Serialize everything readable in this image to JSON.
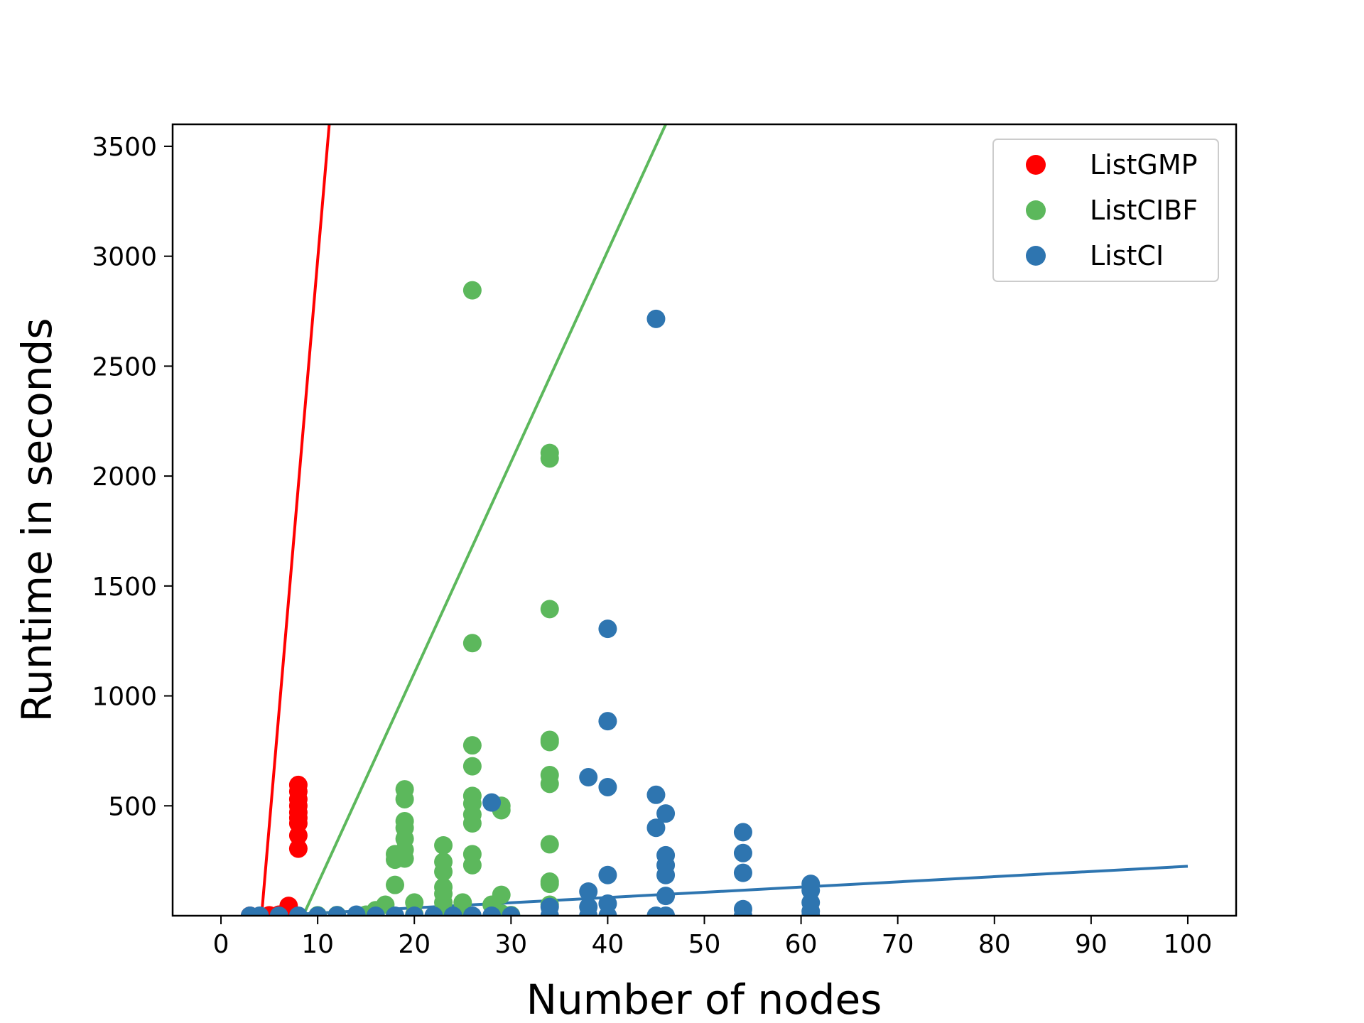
{
  "chart_data": {
    "type": "scatter",
    "title": "",
    "xlabel": "Number of nodes",
    "ylabel": "Runtime in seconds",
    "xlim": [
      -5,
      105
    ],
    "ylim": [
      0,
      3600
    ],
    "xticks": [
      0,
      10,
      20,
      30,
      40,
      50,
      60,
      70,
      80,
      90,
      100
    ],
    "yticks": [
      500,
      1000,
      1500,
      2000,
      2500,
      3000,
      3500
    ],
    "grid": false,
    "legend_position": "top-right",
    "series": [
      {
        "name": "ListGMP",
        "color": "#ff0000",
        "points": [
          [
            3,
            0
          ],
          [
            5,
            2
          ],
          [
            6,
            5
          ],
          [
            7,
            10
          ],
          [
            7,
            45
          ],
          [
            8,
            305
          ],
          [
            8,
            365
          ],
          [
            8,
            420
          ],
          [
            8,
            445
          ],
          [
            8,
            470
          ],
          [
            8,
            500
          ],
          [
            8,
            530
          ],
          [
            8,
            565
          ],
          [
            8,
            595
          ]
        ],
        "fit_line": [
          [
            4.2,
            0
          ],
          [
            11.2,
            3600
          ]
        ]
      },
      {
        "name": "ListCIBF",
        "color": "#5cb85c",
        "points": [
          [
            10,
            2
          ],
          [
            12,
            3
          ],
          [
            15,
            5
          ],
          [
            16,
            25
          ],
          [
            17,
            50
          ],
          [
            18,
            140
          ],
          [
            18,
            255
          ],
          [
            18,
            280
          ],
          [
            19,
            260
          ],
          [
            19,
            300
          ],
          [
            19,
            350
          ],
          [
            19,
            400
          ],
          [
            19,
            430
          ],
          [
            19,
            530
          ],
          [
            19,
            575
          ],
          [
            20,
            60
          ],
          [
            20,
            5
          ],
          [
            23,
            20
          ],
          [
            23,
            60
          ],
          [
            23,
            100
          ],
          [
            23,
            130
          ],
          [
            23,
            200
          ],
          [
            23,
            245
          ],
          [
            23,
            320
          ],
          [
            25,
            60
          ],
          [
            25,
            10
          ],
          [
            26,
            230
          ],
          [
            26,
            280
          ],
          [
            26,
            420
          ],
          [
            26,
            460
          ],
          [
            26,
            510
          ],
          [
            26,
            545
          ],
          [
            26,
            680
          ],
          [
            26,
            775
          ],
          [
            26,
            1240
          ],
          [
            26,
            2845
          ],
          [
            28,
            50
          ],
          [
            29,
            95
          ],
          [
            29,
            480
          ],
          [
            29,
            500
          ],
          [
            29,
            10
          ],
          [
            30,
            3
          ],
          [
            34,
            50
          ],
          [
            34,
            145
          ],
          [
            34,
            155
          ],
          [
            34,
            325
          ],
          [
            34,
            600
          ],
          [
            34,
            640
          ],
          [
            34,
            790
          ],
          [
            34,
            800
          ],
          [
            34,
            1395
          ],
          [
            34,
            2080
          ],
          [
            34,
            2105
          ]
        ],
        "fit_line": [
          [
            8.5,
            0
          ],
          [
            46,
            3600
          ]
        ]
      },
      {
        "name": "ListCI",
        "color": "#2e75b0",
        "points": [
          [
            3,
            0
          ],
          [
            4,
            0
          ],
          [
            6,
            0
          ],
          [
            8,
            0
          ],
          [
            10,
            0
          ],
          [
            12,
            2
          ],
          [
            14,
            5
          ],
          [
            16,
            0
          ],
          [
            18,
            0
          ],
          [
            20,
            0
          ],
          [
            22,
            0
          ],
          [
            24,
            0
          ],
          [
            26,
            0
          ],
          [
            28,
            515
          ],
          [
            28,
            0
          ],
          [
            30,
            0
          ],
          [
            34,
            0
          ],
          [
            34,
            40
          ],
          [
            38,
            0
          ],
          [
            38,
            40
          ],
          [
            38,
            110
          ],
          [
            38,
            630
          ],
          [
            40,
            0
          ],
          [
            40,
            55
          ],
          [
            40,
            185
          ],
          [
            40,
            585
          ],
          [
            40,
            885
          ],
          [
            40,
            1305
          ],
          [
            45,
            0
          ],
          [
            45,
            400
          ],
          [
            45,
            550
          ],
          [
            45,
            2715
          ],
          [
            46,
            0
          ],
          [
            46,
            90
          ],
          [
            46,
            185
          ],
          [
            46,
            230
          ],
          [
            46,
            275
          ],
          [
            46,
            465
          ],
          [
            54,
            0
          ],
          [
            54,
            30
          ],
          [
            54,
            195
          ],
          [
            54,
            285
          ],
          [
            54,
            380
          ],
          [
            61,
            0
          ],
          [
            61,
            20
          ],
          [
            61,
            60
          ],
          [
            61,
            115
          ],
          [
            61,
            145
          ]
        ],
        "fit_line": [
          [
            5,
            0
          ],
          [
            100,
            225
          ]
        ]
      }
    ]
  }
}
